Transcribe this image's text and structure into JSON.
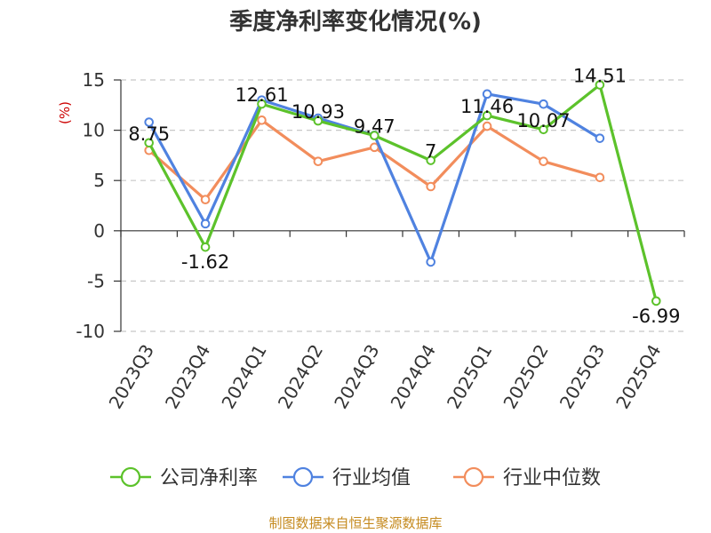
{
  "chart_data": {
    "type": "line",
    "title": "季度净利率变化情况(%)",
    "ylabel": "(%)",
    "ylim": [
      -10,
      15
    ],
    "yticks": [
      15,
      10,
      5,
      0,
      -5,
      -10
    ],
    "grid": true,
    "legend_position": "bottom",
    "categories": [
      "2023Q3",
      "2023Q4",
      "2024Q1",
      "2024Q2",
      "2024Q3",
      "2024Q4",
      "2025Q1",
      "2025Q2",
      "2025Q3",
      "2025Q4"
    ],
    "series": [
      {
        "name": "公司净利率",
        "color": "#5cc22b",
        "values": [
          8.75,
          -1.62,
          12.61,
          10.93,
          9.47,
          7,
          11.46,
          10.07,
          14.51,
          -6.99
        ],
        "labels": [
          "8.75",
          "-1.62",
          "12.61",
          "10.93",
          "9.47",
          "7",
          "11.46",
          "10.07",
          "14.51",
          "-6.99"
        ]
      },
      {
        "name": "行业均值",
        "color": "#4f82e0",
        "values": [
          10.8,
          0.7,
          13.0,
          11.2,
          9.5,
          -3.1,
          13.6,
          12.6,
          9.2,
          null
        ]
      },
      {
        "name": "行业中位数",
        "color": "#f28d5c",
        "values": [
          8.0,
          3.1,
          11.0,
          6.9,
          8.3,
          4.4,
          10.4,
          6.9,
          5.3,
          null
        ]
      }
    ]
  },
  "source_text": "制图数据来自恒生聚源数据库"
}
